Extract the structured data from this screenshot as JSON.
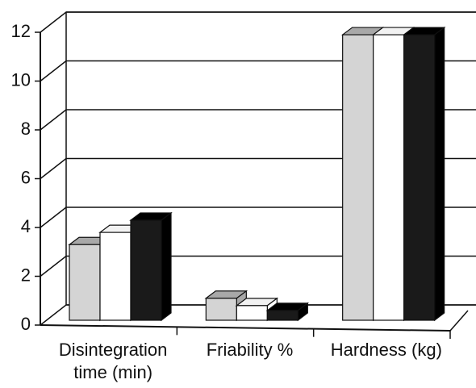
{
  "chart_data": {
    "type": "bar3d",
    "categories": [
      "Disintegration time (min)",
      "Friability %",
      "Hardness (kg)"
    ],
    "series": [
      {
        "color": "#d4d4d4",
        "values": [
          3.1,
          0.9,
          11.7
        ]
      },
      {
        "color": "#ffffff",
        "values": [
          3.6,
          0.6,
          11.7
        ]
      },
      {
        "color": "#1a1a1a",
        "values": [
          4.1,
          0.4,
          11.7
        ]
      }
    ],
    "ylim": [
      0,
      12
    ],
    "yticks": [
      0,
      2,
      4,
      6,
      8,
      10,
      12
    ],
    "grid": true
  }
}
